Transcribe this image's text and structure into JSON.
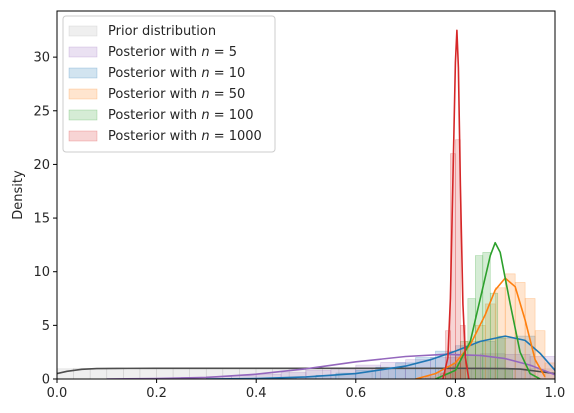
{
  "chart_data": {
    "type": "area",
    "title": "",
    "xlabel": "",
    "ylabel": "Density",
    "xlim": [
      0,
      1
    ],
    "ylim": [
      0,
      34.3
    ],
    "grid": false,
    "legend_position": "top-left",
    "x_ticks": [
      {
        "value": 0.0,
        "label": "0.0"
      },
      {
        "value": 0.2,
        "label": "0.2"
      },
      {
        "value": 0.4,
        "label": "0.4"
      },
      {
        "value": 0.6,
        "label": "0.6"
      },
      {
        "value": 0.8,
        "label": "0.8"
      },
      {
        "value": 1.0,
        "label": "1.0"
      }
    ],
    "y_ticks": [
      {
        "value": 0,
        "label": "0"
      },
      {
        "value": 5,
        "label": "5"
      },
      {
        "value": 10,
        "label": "10"
      },
      {
        "value": 15,
        "label": "15"
      },
      {
        "value": 20,
        "label": "20"
      },
      {
        "value": 25,
        "label": "25"
      },
      {
        "value": 30,
        "label": "30"
      }
    ],
    "series": [
      {
        "name": "Prior distribution",
        "legend_prefix": "Prior distribution",
        "legend_n": "",
        "fill": "#b0b0b0",
        "line": "#4d4d4d",
        "hist": {
          "start": 0.0,
          "width": 0.0333,
          "values": [
            0.95,
            1.0,
            0.98,
            1.02,
            0.97,
            1.0,
            1.03,
            0.99,
            0.98,
            1.01,
            1.0,
            0.97,
            1.02,
            1.0,
            0.99,
            1.01,
            0.98,
            1.0,
            1.02,
            0.99,
            1.0,
            0.98,
            1.01,
            1.0,
            0.99,
            1.02,
            0.98,
            1.0,
            0.99,
            0.95
          ]
        },
        "kde": {
          "x": [
            0.0,
            0.02,
            0.05,
            0.08,
            0.12,
            0.2,
            0.3,
            0.4,
            0.5,
            0.6,
            0.7,
            0.8,
            0.86,
            0.9,
            0.93,
            0.96,
            1.0
          ],
          "y": [
            0.5,
            0.72,
            0.9,
            0.97,
            0.99,
            1.0,
            1.0,
            1.0,
            1.0,
            1.0,
            1.0,
            1.0,
            0.99,
            0.97,
            0.92,
            0.75,
            0.5
          ]
        }
      },
      {
        "name": "Posterior with n = 5",
        "legend_prefix": "Posterior with ",
        "legend_n": "5",
        "fill": "#9467bd",
        "line": "#9467bd",
        "hist": {
          "start": 0.1,
          "width": 0.05,
          "values": [
            0.02,
            0.05,
            0.08,
            0.15,
            0.22,
            0.3,
            0.45,
            0.6,
            0.8,
            1.05,
            1.3,
            1.55,
            1.8,
            2.0,
            2.2,
            2.35,
            2.3,
            2.1
          ]
        },
        "kde": {
          "x": [
            0.1,
            0.2,
            0.3,
            0.4,
            0.5,
            0.6,
            0.7,
            0.78,
            0.85,
            0.9,
            0.95,
            1.0
          ],
          "y": [
            0.0,
            0.05,
            0.15,
            0.45,
            0.95,
            1.6,
            2.1,
            2.3,
            2.2,
            1.9,
            1.3,
            0.4
          ]
        }
      },
      {
        "name": "Posterior with n = 10",
        "legend_prefix": "Posterior with ",
        "legend_n": "10",
        "fill": "#1f77b4",
        "line": "#1f77b4",
        "hist": {
          "start": 0.4,
          "width": 0.04,
          "values": [
            0.05,
            0.1,
            0.2,
            0.35,
            0.55,
            0.8,
            1.1,
            1.5,
            2.0,
            2.6,
            3.1,
            3.5,
            3.8,
            4.0
          ]
        },
        "kde": {
          "x": [
            0.3,
            0.4,
            0.5,
            0.6,
            0.7,
            0.75,
            0.8,
            0.85,
            0.9,
            0.94,
            0.97,
            1.0
          ],
          "y": [
            0.0,
            0.05,
            0.2,
            0.5,
            1.2,
            1.8,
            2.6,
            3.5,
            4.0,
            3.6,
            2.4,
            0.8
          ]
        }
      },
      {
        "name": "Posterior with n = 50",
        "legend_prefix": "Posterior with ",
        "legend_n": "50",
        "fill": "#ff7f0e",
        "line": "#ff7f0e",
        "hist": {
          "start": 0.74,
          "width": 0.02,
          "values": [
            0.2,
            0.6,
            1.2,
            2.0,
            3.5,
            5.0,
            7.0,
            8.5,
            9.8,
            9.0,
            7.5,
            4.5,
            1.5
          ]
        },
        "kde": {
          "x": [
            0.72,
            0.76,
            0.8,
            0.83,
            0.86,
            0.88,
            0.9,
            0.92,
            0.94,
            0.96,
            0.98
          ],
          "y": [
            0.0,
            0.5,
            1.5,
            3.2,
            6.0,
            8.3,
            9.4,
            8.6,
            5.5,
            1.8,
            0.2
          ]
        }
      },
      {
        "name": "Posterior with n = 100",
        "legend_prefix": "Posterior with ",
        "legend_n": "100",
        "fill": "#2ca02c",
        "line": "#2ca02c",
        "hist": {
          "start": 0.78,
          "width": 0.015,
          "values": [
            0.5,
            1.5,
            3.5,
            7.5,
            11.5,
            11.8,
            8.0,
            4.0,
            1.0
          ]
        },
        "kde": {
          "x": [
            0.76,
            0.8,
            0.83,
            0.85,
            0.87,
            0.88,
            0.89,
            0.91,
            0.93,
            0.95,
            0.97
          ],
          "y": [
            0.0,
            0.8,
            3.5,
            7.5,
            11.5,
            12.7,
            11.8,
            7.0,
            2.5,
            0.5,
            0.0
          ]
        }
      },
      {
        "name": "Posterior with n = 1000",
        "legend_prefix": "Posterior with ",
        "legend_n": "1000",
        "fill": "#d62728",
        "line": "#d62728",
        "hist": {
          "start": 0.77,
          "width": 0.01,
          "values": [
            0.5,
            4.5,
            21.0,
            22.3,
            5.0
          ]
        },
        "kde": {
          "x": [
            0.775,
            0.785,
            0.79,
            0.795,
            0.8,
            0.803,
            0.806,
            0.81,
            0.815,
            0.82,
            0.827
          ],
          "y": [
            0.0,
            2.0,
            7.5,
            18.5,
            29.5,
            32.5,
            29.0,
            18.0,
            7.0,
            2.0,
            0.0
          ]
        }
      }
    ]
  }
}
